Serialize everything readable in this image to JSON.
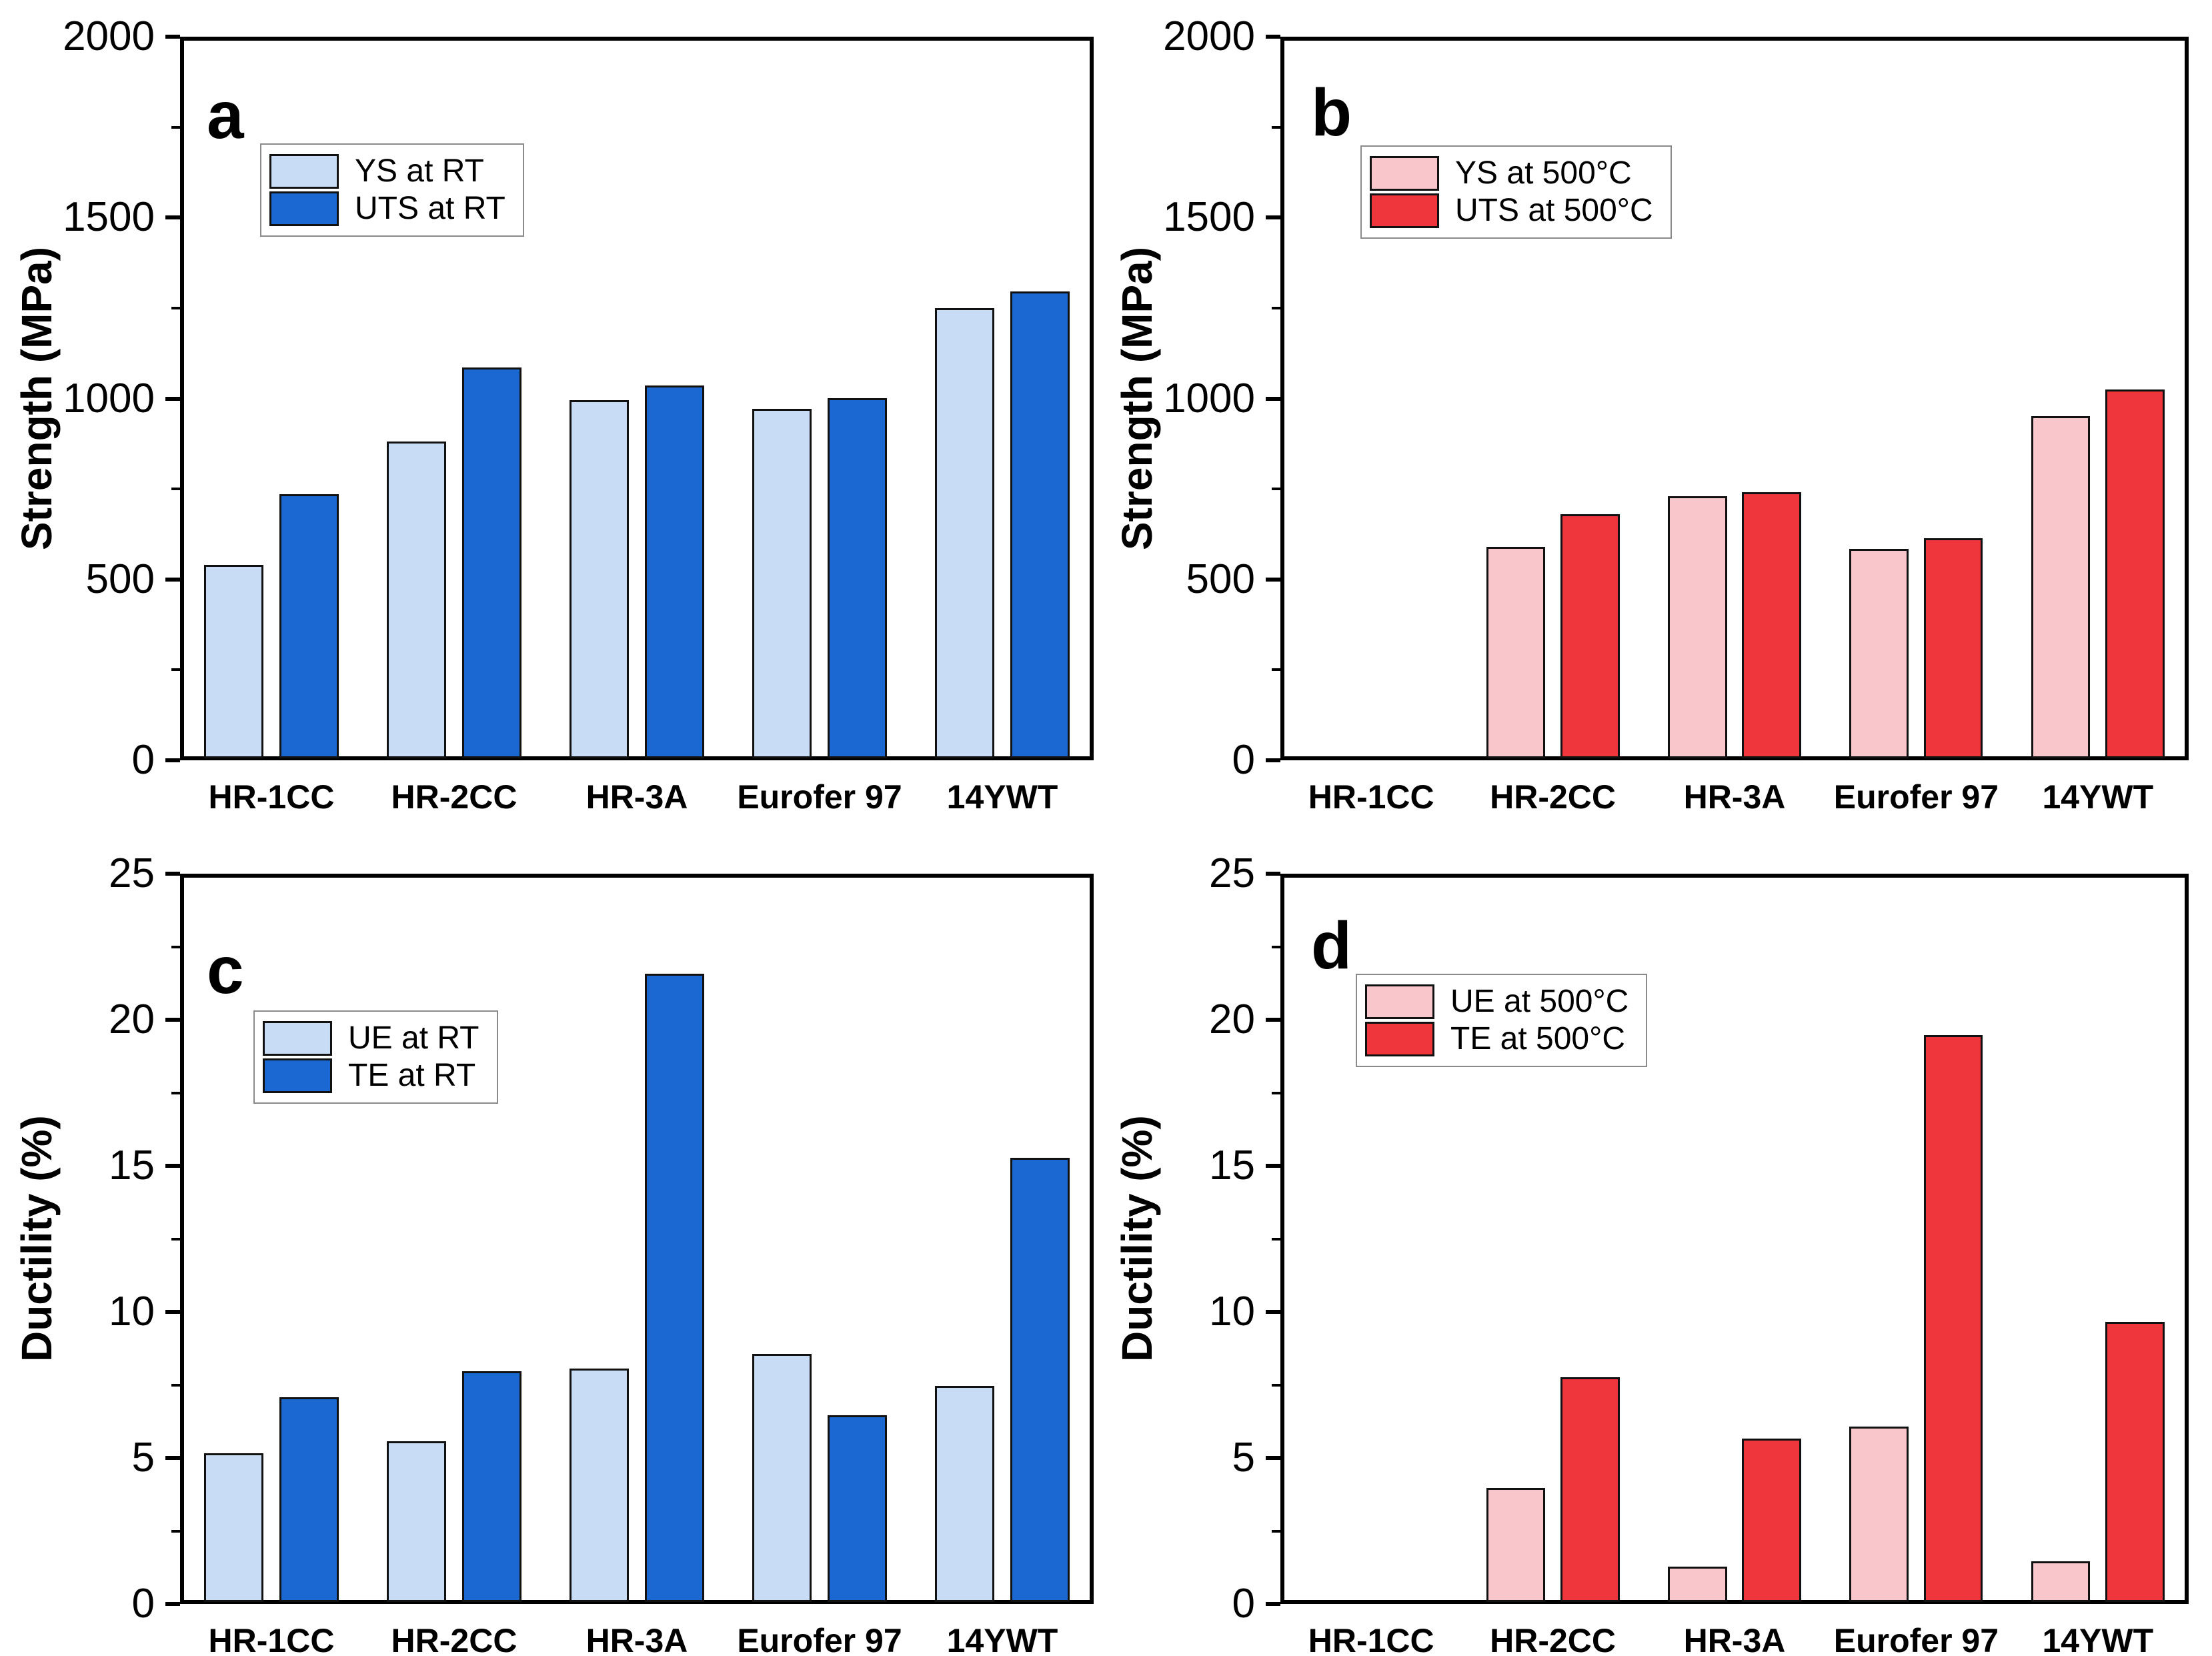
{
  "figure": {
    "background": "#ffffff",
    "description": "Four-panel bar chart figure comparing tensile properties of steels"
  },
  "colors": {
    "light_blue": "#C9DCF5",
    "dark_blue": "#1C68D2",
    "light_pink": "#F9C6CB",
    "red": "#EE363C",
    "bar_border": "#111111",
    "axis": "#000000"
  },
  "categories": [
    "HR-1CC",
    "HR-2CC",
    "HR-3A",
    "Eurofer 97",
    "14YWT"
  ],
  "chart_data": [
    {
      "id": "a",
      "type": "bar",
      "panel_label": "a",
      "ylabel": "Strength (MPa)",
      "ylim": [
        0,
        2000
      ],
      "yticks": [
        0,
        500,
        1000,
        1500,
        2000
      ],
      "minor_tick_step": 250,
      "grid": false,
      "legend_position": "upper-left",
      "categories": [
        "HR-1CC",
        "HR-2CC",
        "HR-3A",
        "Eurofer 97",
        "14YWT"
      ],
      "series": [
        {
          "name": "YS at RT",
          "color_key": "light_blue",
          "values": [
            535,
            875,
            990,
            965,
            1245
          ]
        },
        {
          "name": "UTS at RT",
          "color_key": "dark_blue",
          "values": [
            730,
            1080,
            1030,
            995,
            1290
          ]
        }
      ]
    },
    {
      "id": "b",
      "type": "bar",
      "panel_label": "b",
      "ylabel": "Strength (MPa)",
      "ylim": [
        0,
        2000
      ],
      "yticks": [
        0,
        500,
        1000,
        1500,
        2000
      ],
      "minor_tick_step": 250,
      "grid": false,
      "legend_position": "upper-left",
      "categories": [
        "HR-1CC",
        "HR-2CC",
        "HR-3A",
        "Eurofer 97",
        "14YWT"
      ],
      "series": [
        {
          "name": "YS at 500°C",
          "color_key": "light_pink",
          "values": [
            null,
            585,
            725,
            578,
            945
          ]
        },
        {
          "name": "UTS at 500°C",
          "color_key": "red",
          "values": [
            null,
            675,
            735,
            608,
            1020
          ]
        }
      ]
    },
    {
      "id": "c",
      "type": "bar",
      "panel_label": "c",
      "ylabel": "Ductility (%)",
      "ylim": [
        0,
        25
      ],
      "yticks": [
        0,
        5,
        10,
        15,
        20,
        25
      ],
      "minor_tick_step": 2.5,
      "grid": false,
      "legend_position": "upper-left",
      "categories": [
        "HR-1CC",
        "HR-2CC",
        "HR-3A",
        "Eurofer 97",
        "14YWT"
      ],
      "series": [
        {
          "name": "UE at RT",
          "color_key": "light_blue",
          "values": [
            5.1,
            5.5,
            8.0,
            8.5,
            7.4
          ]
        },
        {
          "name": "TE at RT",
          "color_key": "dark_blue",
          "values": [
            7.0,
            7.9,
            21.5,
            6.4,
            15.2
          ]
        }
      ]
    },
    {
      "id": "d",
      "type": "bar",
      "panel_label": "d",
      "ylabel": "Ductility (%)",
      "ylim": [
        0,
        25
      ],
      "yticks": [
        0,
        5,
        10,
        15,
        20,
        25
      ],
      "minor_tick_step": 2.5,
      "grid": false,
      "legend_position": "upper-left",
      "categories": [
        "HR-1CC",
        "HR-2CC",
        "HR-3A",
        "Eurofer 97",
        "14YWT"
      ],
      "series": [
        {
          "name": "UE at 500°C",
          "color_key": "light_pink",
          "values": [
            null,
            3.9,
            1.2,
            6.0,
            1.4
          ]
        },
        {
          "name": "TE at 500°C",
          "color_key": "red",
          "values": [
            null,
            7.7,
            5.6,
            19.4,
            9.6
          ]
        }
      ]
    }
  ]
}
